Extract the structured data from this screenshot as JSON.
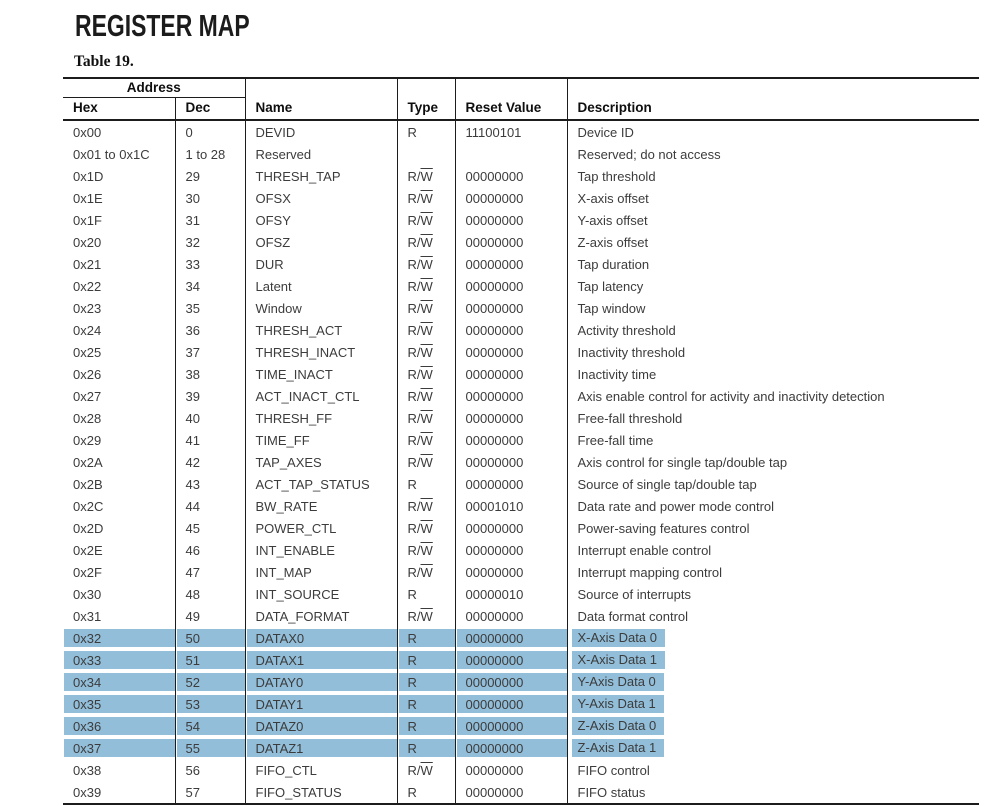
{
  "page": {
    "title": "REGISTER MAP",
    "table_caption": "Table 19."
  },
  "colors": {
    "highlight": "#92BED9",
    "rule": "#1C1C1C"
  },
  "table": {
    "header": {
      "address_group": "Address",
      "columns": [
        "Hex",
        "Dec",
        "Name",
        "Type",
        "Reset Value",
        "Description"
      ]
    },
    "rows": [
      {
        "hex": "0x00",
        "dec": "0",
        "name": "DEVID",
        "type_base": "R",
        "type_overline": "",
        "reset": "11100101",
        "description": "Device ID",
        "highlighted": false
      },
      {
        "hex": "0x01 to 0x1C",
        "dec": "1 to 28",
        "name": "Reserved",
        "type_base": "",
        "type_overline": "",
        "reset": "",
        "description": "Reserved; do not access",
        "highlighted": false
      },
      {
        "hex": "0x1D",
        "dec": "29",
        "name": "THRESH_TAP",
        "type_base": "R/",
        "type_overline": "W",
        "reset": "00000000",
        "description": "Tap threshold",
        "highlighted": false
      },
      {
        "hex": "0x1E",
        "dec": "30",
        "name": "OFSX",
        "type_base": "R/",
        "type_overline": "W",
        "reset": "00000000",
        "description": "X-axis offset",
        "highlighted": false
      },
      {
        "hex": "0x1F",
        "dec": "31",
        "name": "OFSY",
        "type_base": "R/",
        "type_overline": "W",
        "reset": "00000000",
        "description": "Y-axis offset",
        "highlighted": false
      },
      {
        "hex": "0x20",
        "dec": "32",
        "name": "OFSZ",
        "type_base": "R/",
        "type_overline": "W",
        "reset": "00000000",
        "description": "Z-axis offset",
        "highlighted": false
      },
      {
        "hex": "0x21",
        "dec": "33",
        "name": "DUR",
        "type_base": "R/",
        "type_overline": "W",
        "reset": "00000000",
        "description": "Tap duration",
        "highlighted": false
      },
      {
        "hex": "0x22",
        "dec": "34",
        "name": "Latent",
        "type_base": "R/",
        "type_overline": "W",
        "reset": "00000000",
        "description": "Tap latency",
        "highlighted": false
      },
      {
        "hex": "0x23",
        "dec": "35",
        "name": "Window",
        "type_base": "R/",
        "type_overline": "W",
        "reset": "00000000",
        "description": "Tap window",
        "highlighted": false
      },
      {
        "hex": "0x24",
        "dec": "36",
        "name": "THRESH_ACT",
        "type_base": "R/",
        "type_overline": "W",
        "reset": "00000000",
        "description": "Activity threshold",
        "highlighted": false
      },
      {
        "hex": "0x25",
        "dec": "37",
        "name": "THRESH_INACT",
        "type_base": "R/",
        "type_overline": "W",
        "reset": "00000000",
        "description": "Inactivity threshold",
        "highlighted": false
      },
      {
        "hex": "0x26",
        "dec": "38",
        "name": "TIME_INACT",
        "type_base": "R/",
        "type_overline": "W",
        "reset": "00000000",
        "description": "Inactivity time",
        "highlighted": false
      },
      {
        "hex": "0x27",
        "dec": "39",
        "name": "ACT_INACT_CTL",
        "type_base": "R/",
        "type_overline": "W",
        "reset": "00000000",
        "description": "Axis enable control for activity and inactivity detection",
        "highlighted": false
      },
      {
        "hex": "0x28",
        "dec": "40",
        "name": "THRESH_FF",
        "type_base": "R/",
        "type_overline": "W",
        "reset": "00000000",
        "description": "Free-fall threshold",
        "highlighted": false
      },
      {
        "hex": "0x29",
        "dec": "41",
        "name": "TIME_FF",
        "type_base": "R/",
        "type_overline": "W",
        "reset": "00000000",
        "description": "Free-fall time",
        "highlighted": false
      },
      {
        "hex": "0x2A",
        "dec": "42",
        "name": "TAP_AXES",
        "type_base": "R/",
        "type_overline": "W",
        "reset": "00000000",
        "description": "Axis control for single tap/double tap",
        "highlighted": false
      },
      {
        "hex": "0x2B",
        "dec": "43",
        "name": "ACT_TAP_STATUS",
        "type_base": "R",
        "type_overline": "",
        "reset": "00000000",
        "description": "Source of single tap/double tap",
        "highlighted": false
      },
      {
        "hex": "0x2C",
        "dec": "44",
        "name": "BW_RATE",
        "type_base": "R/",
        "type_overline": "W",
        "reset": "00001010",
        "description": "Data rate and power mode control",
        "highlighted": false
      },
      {
        "hex": "0x2D",
        "dec": "45",
        "name": "POWER_CTL",
        "type_base": "R/",
        "type_overline": "W",
        "reset": "00000000",
        "description": "Power-saving features control",
        "highlighted": false
      },
      {
        "hex": "0x2E",
        "dec": "46",
        "name": "INT_ENABLE",
        "type_base": "R/",
        "type_overline": "W",
        "reset": "00000000",
        "description": "Interrupt enable control",
        "highlighted": false
      },
      {
        "hex": "0x2F",
        "dec": "47",
        "name": "INT_MAP",
        "type_base": "R/",
        "type_overline": "W",
        "reset": "00000000",
        "description": "Interrupt mapping control",
        "highlighted": false
      },
      {
        "hex": "0x30",
        "dec": "48",
        "name": "INT_SOURCE",
        "type_base": "R",
        "type_overline": "",
        "reset": "00000010",
        "description": "Source of interrupts",
        "highlighted": false
      },
      {
        "hex": "0x31",
        "dec": "49",
        "name": "DATA_FORMAT",
        "type_base": "R/",
        "type_overline": "W",
        "reset": "00000000",
        "description": "Data format control",
        "highlighted": false
      },
      {
        "hex": "0x32",
        "dec": "50",
        "name": "DATAX0",
        "type_base": "R",
        "type_overline": "",
        "reset": "00000000",
        "description": "X-Axis Data 0",
        "highlighted": true
      },
      {
        "hex": "0x33",
        "dec": "51",
        "name": "DATAX1",
        "type_base": "R",
        "type_overline": "",
        "reset": "00000000",
        "description": "X-Axis Data 1",
        "highlighted": true
      },
      {
        "hex": "0x34",
        "dec": "52",
        "name": "DATAY0",
        "type_base": "R",
        "type_overline": "",
        "reset": "00000000",
        "description": "Y-Axis Data 0",
        "highlighted": true
      },
      {
        "hex": "0x35",
        "dec": "53",
        "name": "DATAY1",
        "type_base": "R",
        "type_overline": "",
        "reset": "00000000",
        "description": "Y-Axis Data 1",
        "highlighted": true
      },
      {
        "hex": "0x36",
        "dec": "54",
        "name": "DATAZ0",
        "type_base": "R",
        "type_overline": "",
        "reset": "00000000",
        "description": "Z-Axis Data 0",
        "highlighted": true
      },
      {
        "hex": "0x37",
        "dec": "55",
        "name": "DATAZ1",
        "type_base": "R",
        "type_overline": "",
        "reset": "00000000",
        "description": "Z-Axis Data 1",
        "highlighted": true
      },
      {
        "hex": "0x38",
        "dec": "56",
        "name": "FIFO_CTL",
        "type_base": "R/",
        "type_overline": "W",
        "reset": "00000000",
        "description": "FIFO control",
        "highlighted": false
      },
      {
        "hex": "0x39",
        "dec": "57",
        "name": "FIFO_STATUS",
        "type_base": "R",
        "type_overline": "",
        "reset": "00000000",
        "description": "FIFO status",
        "highlighted": false
      }
    ]
  }
}
